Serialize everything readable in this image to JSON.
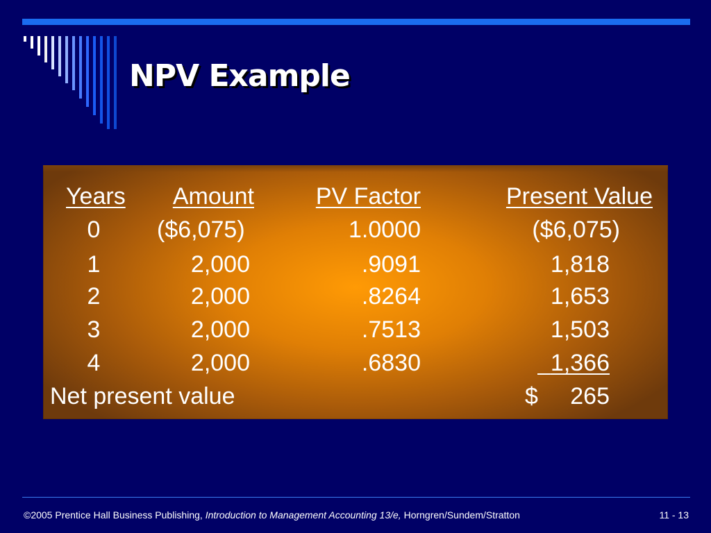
{
  "slide": {
    "title": "NPV Example"
  },
  "table": {
    "headers": [
      "Years",
      "Amount",
      "PV Factor",
      "Present Value"
    ],
    "rows": [
      {
        "year": "0",
        "amount": "($6,075)",
        "factor": "1.0000",
        "pv": "($6,075)"
      },
      {
        "year": "1",
        "amount": "2,000",
        "factor": ".9091",
        "pv": "1,818"
      },
      {
        "year": "2",
        "amount": "2,000",
        "factor": ".8264",
        "pv": "1,653"
      },
      {
        "year": "3",
        "amount": "2,000",
        "factor": ".7513",
        "pv": "1,503"
      },
      {
        "year": "4",
        "amount": "2,000",
        "factor": ".6830",
        "pv": "1,366"
      }
    ],
    "total": {
      "label": "Net present value",
      "currency": "$",
      "value": "265"
    }
  },
  "footer": {
    "copyright": "©2005 Prentice Hall Business Publishing,",
    "book": "Introduction to Management Accounting 13/e,",
    "authors": "Horngren/Sundem/Stratton",
    "page": "11 - 13"
  },
  "colors": {
    "background": "#000066",
    "accent_blue": "#1a6cf0",
    "panel_orange": "#ff9a05"
  }
}
